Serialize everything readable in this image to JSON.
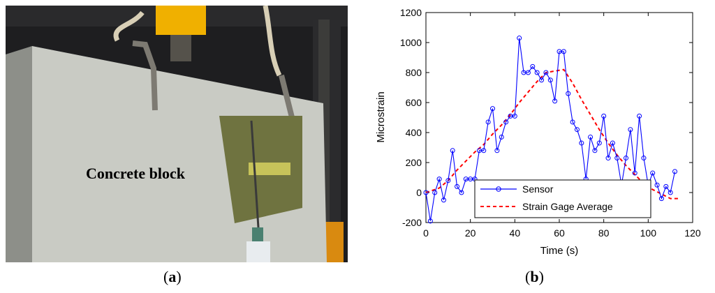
{
  "photo": {
    "annotation": "Concrete block",
    "colors": {
      "concrete": "#c9cbc4",
      "background": "#1e1e20",
      "plate": "#6f7340",
      "tape": "#c7c35a",
      "yellow_fixture": "#f0b000",
      "rod": "#3a3a3a"
    }
  },
  "panel_labels": {
    "a_open": "(",
    "a_letter": "a",
    "a_close": ")",
    "b_open": "(",
    "b_letter": "b",
    "b_close": ")"
  },
  "chart_data": {
    "type": "line",
    "xlabel": "Time (s)",
    "ylabel": "Microstrain",
    "xlim": [
      0,
      120
    ],
    "ylim": [
      -200,
      1200
    ],
    "xticks": [
      0,
      20,
      40,
      60,
      80,
      100,
      120
    ],
    "yticks": [
      -200,
      0,
      200,
      400,
      600,
      800,
      1000,
      1200
    ],
    "grid": false,
    "legend_position": "bottom-center",
    "series": [
      {
        "name": "Sensor",
        "color": "#0000ff",
        "style": "solid-circle-markers",
        "x": [
          0,
          2,
          4,
          6,
          8,
          10,
          12,
          14,
          16,
          18,
          20,
          22,
          24,
          26,
          28,
          30,
          32,
          34,
          36,
          38,
          40,
          42,
          44,
          46,
          48,
          50,
          52,
          54,
          56,
          58,
          60,
          62,
          64,
          66,
          68,
          70,
          72,
          74,
          76,
          78,
          80,
          82,
          84,
          86,
          88,
          90,
          92,
          94,
          96,
          98,
          100,
          102,
          104,
          106,
          108,
          110,
          112
        ],
        "y": [
          0,
          -190,
          0,
          90,
          -50,
          80,
          280,
          40,
          0,
          90,
          90,
          90,
          280,
          280,
          470,
          560,
          280,
          370,
          470,
          510,
          510,
          1030,
          800,
          800,
          840,
          800,
          750,
          800,
          750,
          610,
          940,
          940,
          660,
          470,
          420,
          330,
          90,
          370,
          280,
          330,
          510,
          230,
          330,
          230,
          50,
          230,
          420,
          130,
          510,
          230,
          50,
          130,
          50,
          -40,
          40,
          0,
          140
        ]
      },
      {
        "name": "Strain Gage Average",
        "color": "#ff0000",
        "style": "dashed",
        "x": [
          0,
          6,
          10,
          14,
          18,
          22,
          26,
          30,
          34,
          38,
          42,
          46,
          50,
          54,
          58,
          62,
          66,
          70,
          74,
          78,
          82,
          86,
          90,
          94,
          98,
          102,
          106,
          110,
          114
        ],
        "y": [
          0,
          30,
          80,
          150,
          210,
          270,
          320,
          390,
          450,
          520,
          600,
          670,
          740,
          800,
          810,
          820,
          730,
          620,
          520,
          420,
          330,
          250,
          180,
          120,
          60,
          20,
          -10,
          -40,
          -40
        ]
      }
    ]
  }
}
